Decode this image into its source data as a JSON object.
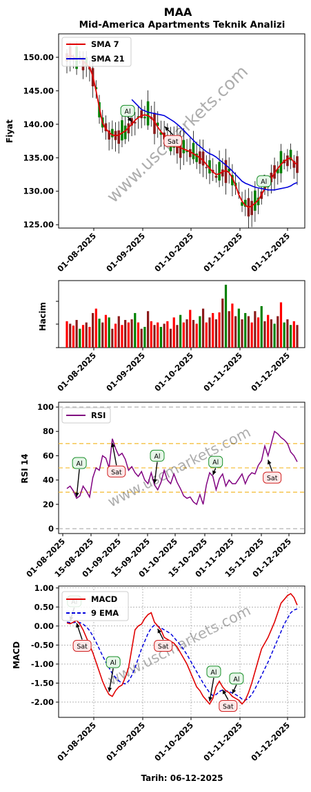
{
  "title": "MAA",
  "subtitle": "Mid-America Apartments Teknik Analizi",
  "watermark": "www.uscmarkets.com",
  "footer": "Tarih: 06-12-2025",
  "colors": {
    "up": "#008000",
    "down": "#d00000",
    "dark_red": "#8b1a1a",
    "sma7": "#e00000",
    "sma21": "#0000dd",
    "rsi": "#800080",
    "macd": "#e00000",
    "ema9": "#0000dd",
    "band_orange": "#f5c040",
    "band_gray": "#b0b0b0",
    "buy_badge": "#1a8f2a",
    "sell_badge": "#d02020"
  },
  "chart_data": [
    {
      "type": "candlestick",
      "ylabel": "Fiyat",
      "ylim": [
        124.5,
        153.5
      ],
      "yticks": [
        "125.00",
        "130.00",
        "135.00",
        "140.00",
        "145.00",
        "150.00"
      ],
      "xticks": [
        "01-08-2025",
        "01-09-2025",
        "01-10-2025",
        "01-11-2025",
        "01-12-2025"
      ],
      "legend": {
        "placement": "upper-left",
        "entries": [
          "SMA 7",
          "SMA 21"
        ]
      },
      "series": [
        {
          "name": "SMA 7",
          "values": [
            150.0,
            150.3,
            150.1,
            149.7,
            149.9,
            149.4,
            149.0,
            148.5,
            147.2,
            145.0,
            142.5,
            140.2,
            139.3,
            138.8,
            138.4,
            138.3,
            138.4,
            138.7,
            139.0,
            139.5,
            140.0,
            140.6,
            141.0,
            141.3,
            141.4,
            141.3,
            141.0,
            140.4,
            139.6,
            138.9,
            138.3,
            137.8,
            137.3,
            137.0,
            136.7,
            136.5,
            136.3,
            136.1,
            135.9,
            135.6,
            135.3,
            135.0,
            134.6,
            134.0,
            133.4,
            132.9,
            132.5,
            132.6,
            132.9,
            133.1,
            132.8,
            132.0,
            130.9,
            129.5,
            128.5,
            127.9,
            127.6,
            127.8,
            128.2,
            128.7,
            129.5,
            130.4,
            131.1,
            131.9,
            132.7,
            133.4,
            134.0,
            134.5,
            134.8,
            135.0,
            134.3,
            134.0
          ]
        },
        {
          "name": "SMA 21",
          "values": [
            null,
            null,
            null,
            null,
            null,
            null,
            null,
            null,
            null,
            null,
            null,
            null,
            null,
            null,
            null,
            null,
            null,
            null,
            null,
            null,
            143.7,
            143.2,
            142.7,
            142.2,
            142.0,
            141.8,
            141.7,
            141.6,
            141.5,
            141.4,
            141.3,
            141.0,
            140.7,
            140.4,
            140.0,
            139.6,
            139.1,
            138.6,
            138.1,
            137.6,
            137.1,
            136.7,
            136.3,
            135.9,
            135.6,
            135.4,
            135.1,
            134.7,
            134.3,
            133.9,
            133.5,
            133.0,
            132.5,
            132.0,
            131.5,
            131.2,
            131.0,
            130.8,
            130.6,
            130.5,
            130.4,
            130.3,
            130.2,
            130.2,
            130.2,
            130.3,
            130.4,
            130.5,
            130.6,
            130.8,
            131.1,
            131.3
          ]
        }
      ],
      "annotations": [
        {
          "label": "Al",
          "x_index": 20,
          "y": 142.0
        },
        {
          "label": "Sat",
          "x_index": 31,
          "y": 137.5
        },
        {
          "label": "Al",
          "x_index": 62,
          "y": 131.5
        }
      ]
    },
    {
      "type": "bar",
      "ylabel": "Hacim",
      "xticks": [
        "01-08-2025",
        "01-09-2025",
        "01-10-2025",
        "01-11-2025",
        "01-12-2025"
      ],
      "values": [
        0.42,
        0.38,
        0.35,
        0.44,
        0.3,
        0.36,
        0.4,
        0.33,
        0.55,
        0.62,
        0.46,
        0.4,
        0.52,
        0.48,
        0.3,
        0.38,
        0.5,
        0.36,
        0.44,
        0.4,
        0.45,
        0.55,
        0.4,
        0.3,
        0.33,
        0.58,
        0.42,
        0.36,
        0.4,
        0.33,
        0.38,
        0.42,
        0.3,
        0.48,
        0.36,
        0.52,
        0.4,
        0.45,
        0.6,
        0.44,
        0.38,
        0.5,
        0.62,
        0.4,
        0.48,
        0.55,
        0.45,
        0.56,
        0.78,
        1.0,
        0.58,
        0.7,
        0.5,
        0.62,
        0.45,
        0.55,
        0.5,
        0.4,
        0.58,
        0.48,
        0.66,
        0.42,
        0.52,
        0.45,
        0.38,
        0.5,
        0.72,
        0.4,
        0.45,
        0.36,
        0.42,
        0.36
      ],
      "colors": [
        "r",
        "d",
        "r",
        "d",
        "g",
        "r",
        "d",
        "r",
        "d",
        "r",
        "g",
        "d",
        "r",
        "g",
        "d",
        "r",
        "d",
        "r",
        "d",
        "r",
        "d",
        "g",
        "r",
        "d",
        "g",
        "d",
        "r",
        "d",
        "r",
        "g",
        "d",
        "r",
        "d",
        "r",
        "d",
        "g",
        "r",
        "d",
        "r",
        "d",
        "r",
        "g",
        "d",
        "r",
        "d",
        "r",
        "d",
        "r",
        "d",
        "g",
        "d",
        "r",
        "d",
        "g",
        "d",
        "g",
        "d",
        "r",
        "d",
        "r",
        "g",
        "d",
        "r",
        "d",
        "g",
        "d",
        "r",
        "g",
        "d",
        "g",
        "r",
        "d"
      ]
    },
    {
      "type": "line",
      "ylabel": "RSI 14",
      "ylim": [
        -4,
        104
      ],
      "yticks": [
        "0",
        "20",
        "40",
        "60",
        "80",
        "100"
      ],
      "xticks": [
        "01-08-2025",
        "15-08-2025",
        "01-09-2025",
        "15-09-2025",
        "01-10-2025",
        "15-10-2025",
        "01-11-2025",
        "15-11-2025",
        "01-12-2025"
      ],
      "hlines": {
        "gray": [
          0,
          100
        ],
        "orange": [
          30,
          50,
          70
        ]
      },
      "legend": {
        "placement": "upper-left",
        "entries": [
          "RSI"
        ]
      },
      "series": [
        {
          "name": "RSI",
          "values": [
            33,
            35,
            31,
            25,
            27,
            35,
            31,
            26,
            42,
            50,
            48,
            60,
            58,
            50,
            74,
            66,
            60,
            62,
            57,
            48,
            51,
            46,
            43,
            47,
            40,
            37,
            46,
            36,
            32,
            38,
            48,
            40,
            37,
            45,
            38,
            33,
            27,
            25,
            26,
            22,
            20,
            28,
            20,
            36,
            46,
            43,
            32,
            41,
            45,
            35,
            40,
            37,
            37,
            41,
            45,
            37,
            43,
            46,
            45,
            52,
            56,
            68,
            60,
            70,
            80,
            78,
            75,
            73,
            70,
            63,
            60,
            55
          ]
        }
      ],
      "annotations": [
        {
          "label": "Al",
          "x_index": 3,
          "y": 54
        },
        {
          "label": "Sat",
          "x_index": 14,
          "y": 47
        },
        {
          "label": "Al",
          "x_index": 27,
          "y": 60
        },
        {
          "label": "Al",
          "x_index": 45,
          "y": 55
        },
        {
          "label": "Sat",
          "x_index": 62,
          "y": 42
        }
      ]
    },
    {
      "type": "line",
      "ylabel": "MACD",
      "ylim": [
        -2.4,
        1.05
      ],
      "yticks": [
        "-2.00",
        "-1.50",
        "-1.00",
        "-0.50",
        "0.00",
        "0.50",
        "1.00"
      ],
      "xticks": [
        "01-08-2025",
        "01-09-2025",
        "01-10-2025",
        "01-11-2025",
        "01-12-2025"
      ],
      "xlabel": "Tarih: 06-12-2025",
      "grid": true,
      "legend": {
        "placement": "upper-left",
        "entries": [
          "MACD",
          "9 EMA"
        ]
      },
      "series": [
        {
          "name": "MACD",
          "values": [
            0.08,
            0.06,
            0.1,
            0.15,
            0.05,
            -0.1,
            -0.3,
            -0.5,
            -0.7,
            -0.95,
            -1.2,
            -1.45,
            -1.65,
            -1.8,
            -1.85,
            -1.7,
            -1.6,
            -1.55,
            -1.35,
            -1.1,
            -0.6,
            -0.1,
            0.0,
            0.05,
            0.2,
            0.3,
            0.35,
            0.1,
            0.0,
            -0.1,
            -0.3,
            -0.35,
            -0.4,
            -0.45,
            -0.55,
            -0.7,
            -0.85,
            -1.0,
            -1.2,
            -1.4,
            -1.6,
            -1.7,
            -1.85,
            -1.95,
            -2.05,
            -1.9,
            -1.6,
            -1.45,
            -1.6,
            -1.7,
            -1.75,
            -1.85,
            -1.9,
            -1.95,
            -2.05,
            -1.95,
            -1.75,
            -1.5,
            -1.2,
            -0.9,
            -0.6,
            -0.45,
            -0.3,
            -0.1,
            0.1,
            0.35,
            0.6,
            0.7,
            0.8,
            0.85,
            0.75,
            0.55
          ]
        },
        {
          "name": "9 EMA",
          "values": [
            0.1,
            0.09,
            0.09,
            0.1,
            0.09,
            0.05,
            -0.02,
            -0.12,
            -0.26,
            -0.42,
            -0.6,
            -0.78,
            -0.95,
            -1.1,
            -1.25,
            -1.35,
            -1.44,
            -1.5,
            -1.52,
            -1.45,
            -1.3,
            -1.1,
            -0.85,
            -0.6,
            -0.4,
            -0.2,
            -0.05,
            0.02,
            0.0,
            -0.05,
            -0.1,
            -0.15,
            -0.2,
            -0.3,
            -0.4,
            -0.5,
            -0.62,
            -0.75,
            -0.9,
            -1.05,
            -1.2,
            -1.35,
            -1.5,
            -1.63,
            -1.75,
            -1.83,
            -1.8,
            -1.72,
            -1.68,
            -1.7,
            -1.72,
            -1.76,
            -1.8,
            -1.85,
            -1.92,
            -1.95,
            -1.9,
            -1.8,
            -1.65,
            -1.48,
            -1.3,
            -1.12,
            -0.95,
            -0.75,
            -0.55,
            -0.35,
            -0.15,
            0.05,
            0.2,
            0.35,
            0.42,
            0.45
          ]
        }
      ],
      "annotations": [
        {
          "label": "Al",
          "x_index": 1,
          "y": 0.65
        },
        {
          "label": "Sat",
          "x_index": 3,
          "y": -0.52
        },
        {
          "label": "Al",
          "x_index": 13,
          "y": -0.95
        },
        {
          "label": "Sat",
          "x_index": 28,
          "y": -0.52
        },
        {
          "label": "Al",
          "x_index": 44,
          "y": -1.2
        },
        {
          "label": "Sat",
          "x_index": 48,
          "y": -2.1
        },
        {
          "label": "Al",
          "x_index": 51,
          "y": -1.38
        }
      ]
    }
  ]
}
